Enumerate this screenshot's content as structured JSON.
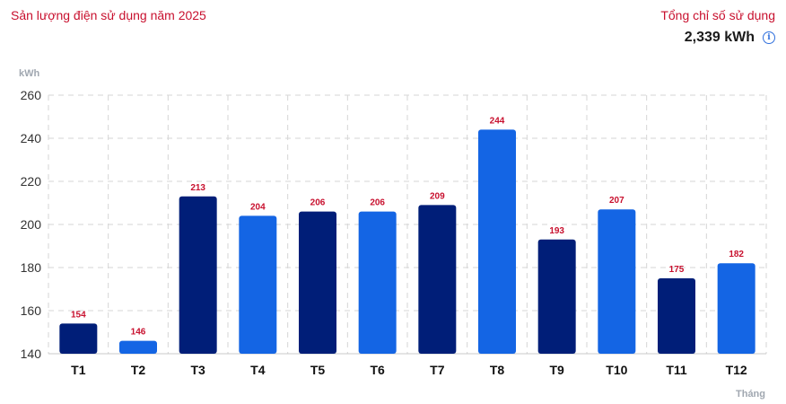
{
  "header": {
    "title": "Sản lượng điện sử dụng năm 2025",
    "total_label": "Tổng chỉ số sử dụng",
    "total_value": "2,339 kWh",
    "info_icon": "info-icon"
  },
  "colors": {
    "dark": "#001e78",
    "light": "#1465e4",
    "label": "#c8102e"
  },
  "chart_data": {
    "type": "bar",
    "ylabel": "kWh",
    "xlabel": "Tháng",
    "categories": [
      "T1",
      "T2",
      "T3",
      "T4",
      "T5",
      "T6",
      "T7",
      "T8",
      "T9",
      "T10",
      "T11",
      "T12"
    ],
    "values": [
      154,
      146,
      213,
      204,
      206,
      206,
      209,
      244,
      193,
      207,
      175,
      182
    ],
    "bar_colors": [
      "dark",
      "light",
      "dark",
      "light",
      "dark",
      "light",
      "dark",
      "light",
      "dark",
      "light",
      "dark",
      "light"
    ],
    "ylim": [
      140,
      260
    ],
    "yticks": [
      140,
      160,
      180,
      200,
      220,
      240,
      260
    ],
    "grid": true,
    "data_labels": true
  }
}
